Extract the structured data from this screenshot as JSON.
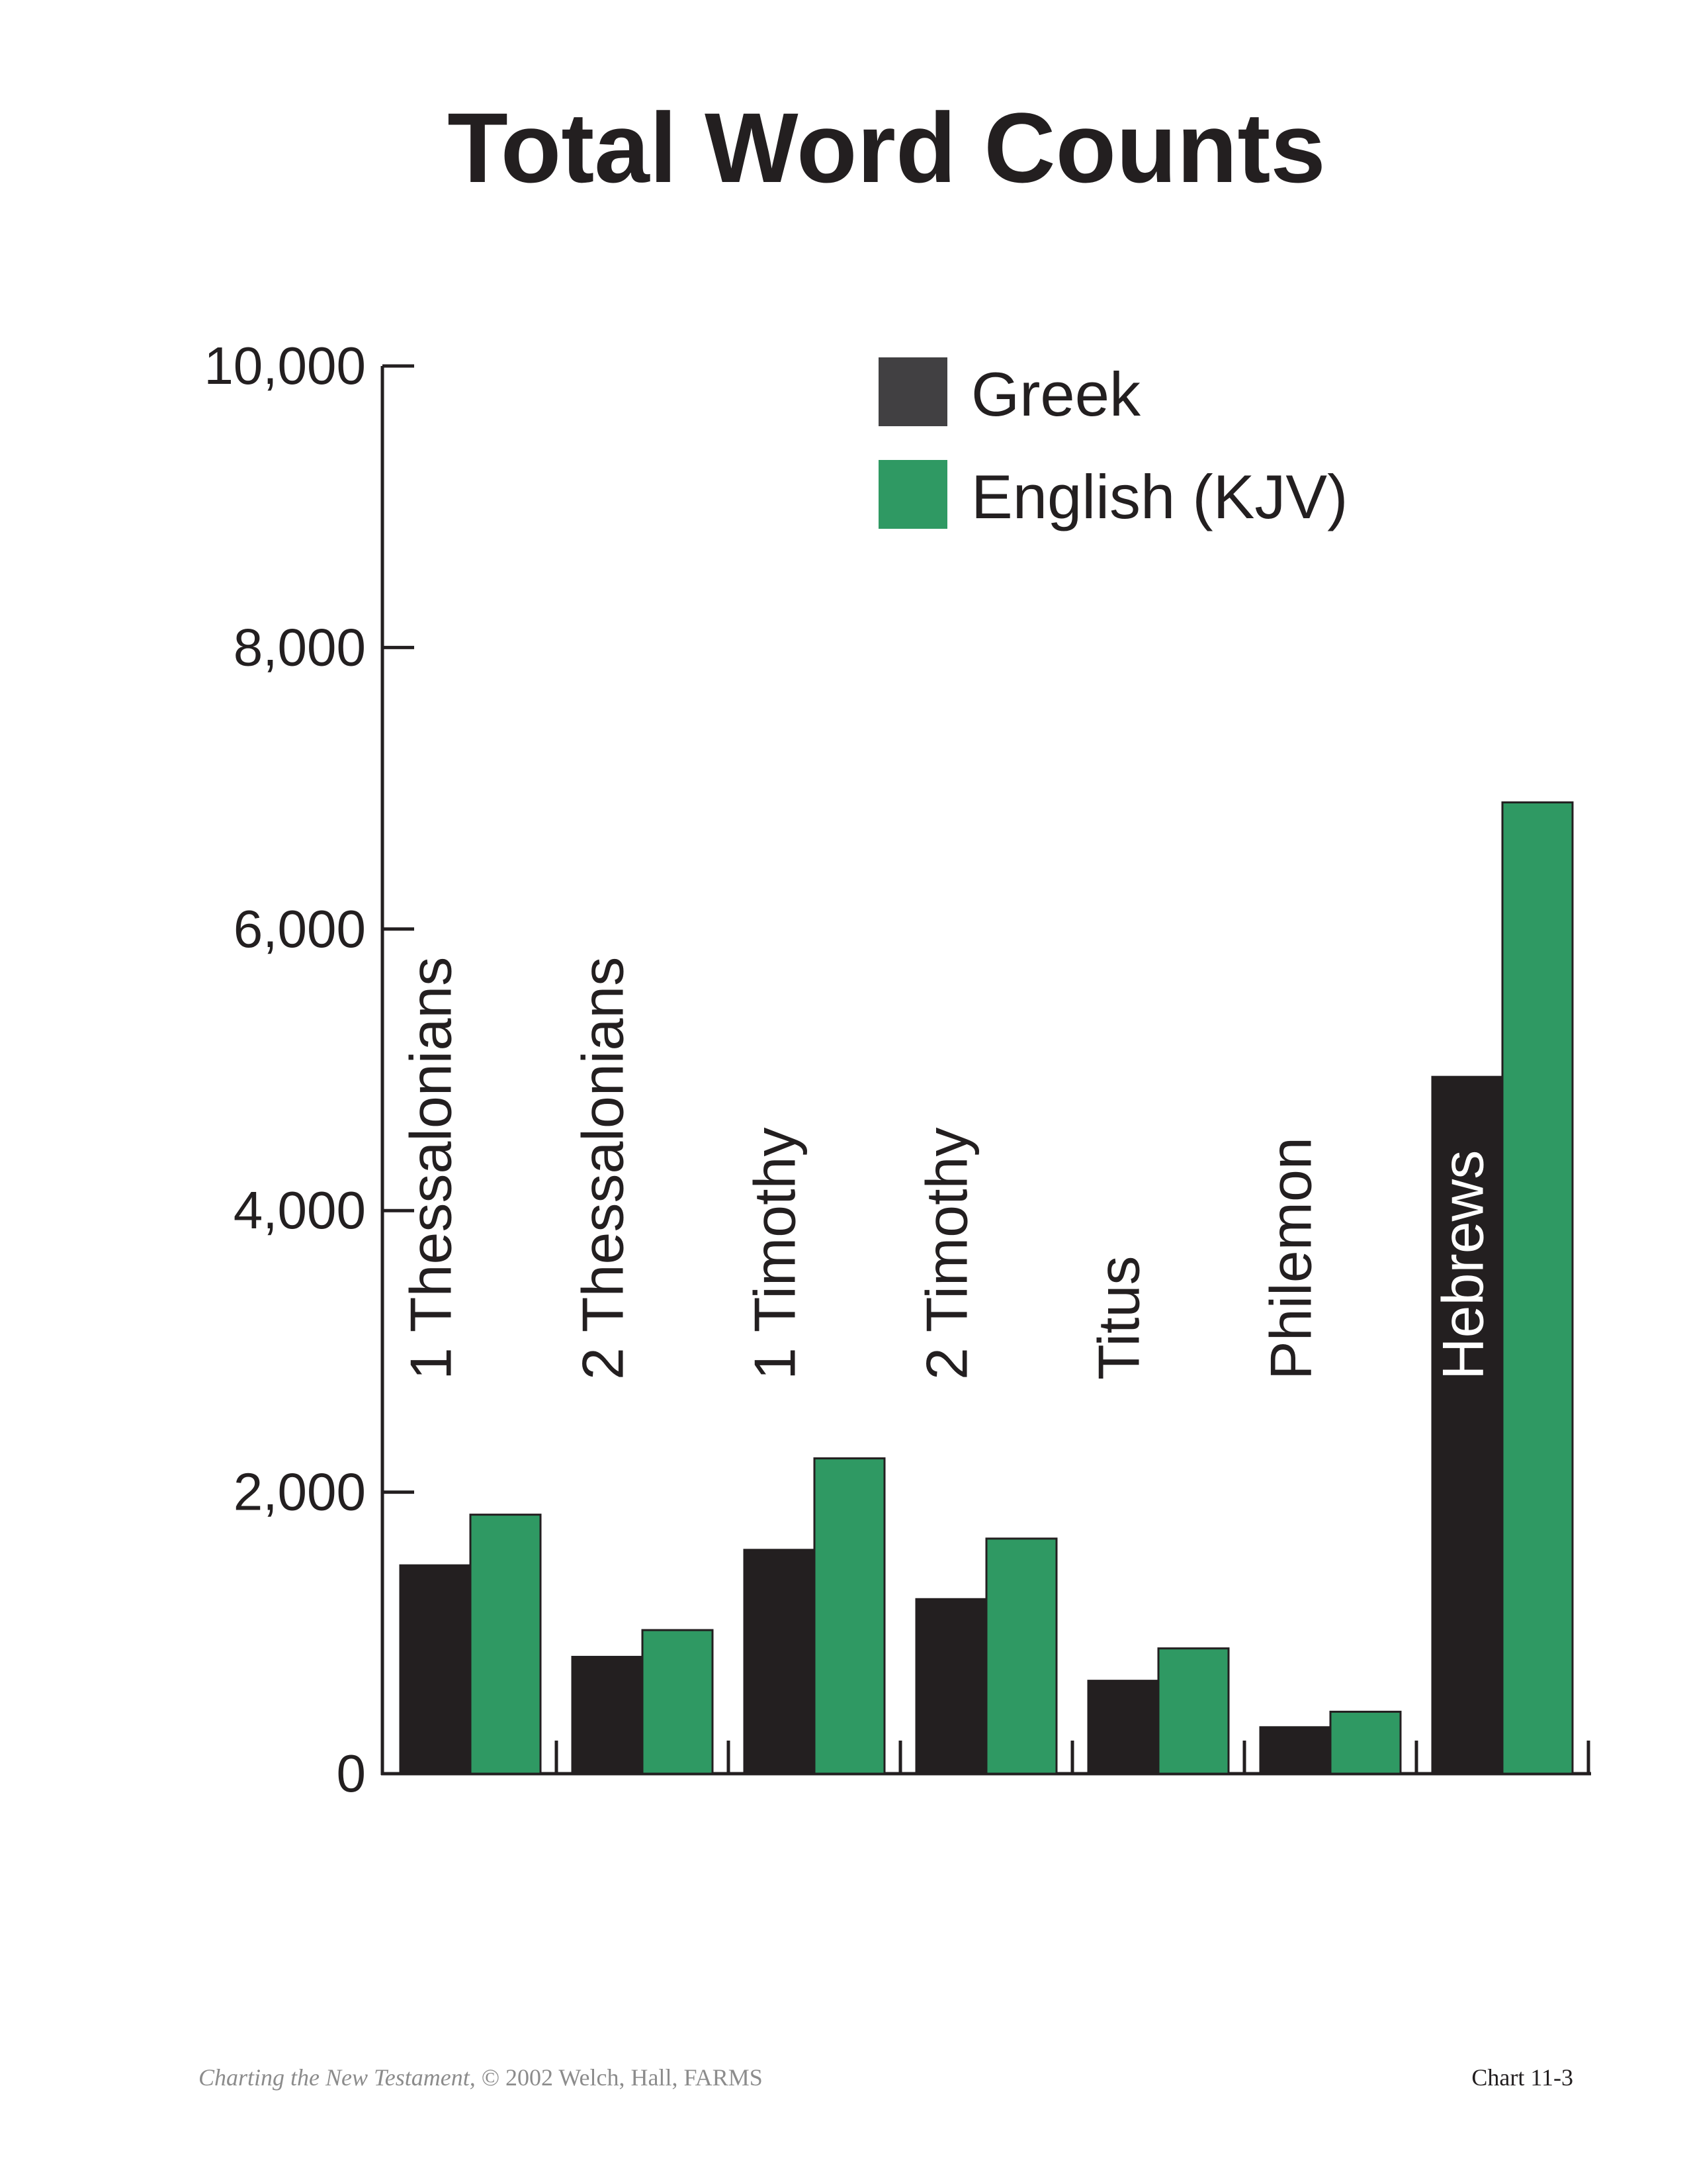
{
  "chart_data": {
    "type": "bar",
    "title": "Total Word Counts",
    "xlabel": "",
    "ylabel": "",
    "ylim": [
      0,
      10000
    ],
    "yticks": [
      0,
      2000,
      4000,
      6000,
      8000,
      10000
    ],
    "ytick_labels": [
      "0",
      "2,000",
      "4,000",
      "6,000",
      "8,000",
      "10,000"
    ],
    "categories": [
      "1 Thessalonians",
      "2 Thessalonians",
      "1 Timothy",
      "2 Timothy",
      "Titus",
      "Philemon",
      "Hebrews"
    ],
    "series": [
      {
        "name": "Greek",
        "color": "#231f20",
        "values": [
          1480,
          830,
          1590,
          1240,
          660,
          330,
          4950
        ]
      },
      {
        "name": "English (KJV)",
        "color": "#2f9963",
        "values": [
          1840,
          1020,
          2240,
          1670,
          890,
          440,
          6900
        ]
      }
    ],
    "legend_position": "top-right",
    "grid": false
  },
  "footer": {
    "source_book": "Charting the New Testament,",
    "source_rest": " © 2002 Welch, Hall, FARMS",
    "chart_number": "Chart 11-3"
  }
}
